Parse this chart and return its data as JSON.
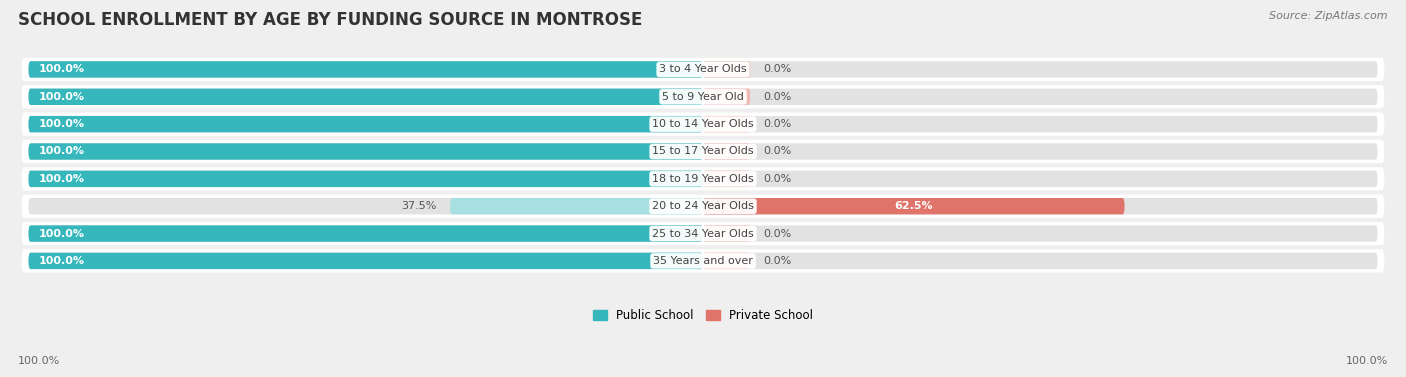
{
  "title": "SCHOOL ENROLLMENT BY AGE BY FUNDING SOURCE IN MONTROSE",
  "source": "Source: ZipAtlas.com",
  "categories": [
    "3 to 4 Year Olds",
    "5 to 9 Year Old",
    "10 to 14 Year Olds",
    "15 to 17 Year Olds",
    "18 to 19 Year Olds",
    "20 to 24 Year Olds",
    "25 to 34 Year Olds",
    "35 Years and over"
  ],
  "public_values": [
    100.0,
    100.0,
    100.0,
    100.0,
    100.0,
    37.5,
    100.0,
    100.0
  ],
  "private_values": [
    0.0,
    0.0,
    0.0,
    0.0,
    0.0,
    62.5,
    0.0,
    0.0
  ],
  "public_color": "#35b7bc",
  "public_color_light": "#a8dfe0",
  "private_color": "#e0736a",
  "private_color_light": "#f0b8b3",
  "bg_color": "#efefef",
  "row_bg_color": "#f8f8f8",
  "bar_bg_color": "#e2e2e2",
  "title_fontsize": 12,
  "label_fontsize": 8.0,
  "source_fontsize": 8,
  "legend_fontsize": 8.5,
  "axis_label_fontsize": 8
}
